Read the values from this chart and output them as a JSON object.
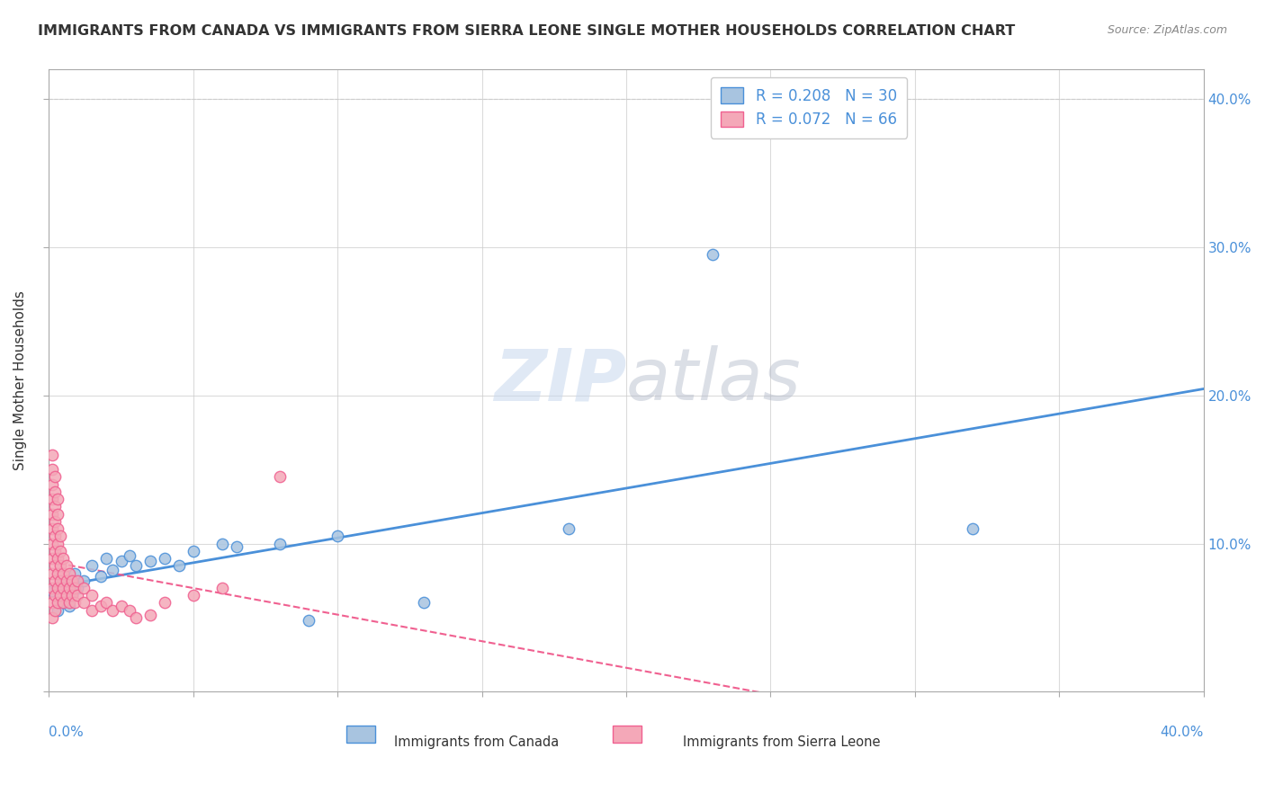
{
  "title": "IMMIGRANTS FROM CANADA VS IMMIGRANTS FROM SIERRA LEONE SINGLE MOTHER HOUSEHOLDS CORRELATION CHART",
  "source": "Source: ZipAtlas.com",
  "ylabel": "Single Mother Households",
  "legend_canada": "R = 0.208   N = 30",
  "legend_sierra": "R = 0.072   N = 66",
  "watermark_zip": "ZIP",
  "watermark_atlas": "atlas",
  "canada_color": "#a8c4e0",
  "sierra_color": "#f4a8b8",
  "canada_line_color": "#4a90d9",
  "sierra_line_color": "#f06090",
  "canada_scatter": [
    [
      0.001,
      0.068
    ],
    [
      0.003,
      0.055
    ],
    [
      0.004,
      0.072
    ],
    [
      0.005,
      0.06
    ],
    [
      0.006,
      0.075
    ],
    [
      0.007,
      0.058
    ],
    [
      0.008,
      0.065
    ],
    [
      0.009,
      0.08
    ],
    [
      0.01,
      0.07
    ],
    [
      0.012,
      0.075
    ],
    [
      0.015,
      0.085
    ],
    [
      0.018,
      0.078
    ],
    [
      0.02,
      0.09
    ],
    [
      0.022,
      0.082
    ],
    [
      0.025,
      0.088
    ],
    [
      0.028,
      0.092
    ],
    [
      0.03,
      0.085
    ],
    [
      0.035,
      0.088
    ],
    [
      0.04,
      0.09
    ],
    [
      0.045,
      0.085
    ],
    [
      0.05,
      0.095
    ],
    [
      0.06,
      0.1
    ],
    [
      0.065,
      0.098
    ],
    [
      0.08,
      0.1
    ],
    [
      0.09,
      0.048
    ],
    [
      0.1,
      0.105
    ],
    [
      0.13,
      0.06
    ],
    [
      0.18,
      0.11
    ],
    [
      0.23,
      0.295
    ],
    [
      0.32,
      0.11
    ]
  ],
  "sierra_scatter": [
    [
      0.001,
      0.05
    ],
    [
      0.001,
      0.06
    ],
    [
      0.001,
      0.07
    ],
    [
      0.001,
      0.08
    ],
    [
      0.001,
      0.09
    ],
    [
      0.001,
      0.1
    ],
    [
      0.001,
      0.11
    ],
    [
      0.001,
      0.12
    ],
    [
      0.001,
      0.13
    ],
    [
      0.001,
      0.14
    ],
    [
      0.001,
      0.15
    ],
    [
      0.001,
      0.16
    ],
    [
      0.002,
      0.055
    ],
    [
      0.002,
      0.065
    ],
    [
      0.002,
      0.075
    ],
    [
      0.002,
      0.085
    ],
    [
      0.002,
      0.095
    ],
    [
      0.002,
      0.105
    ],
    [
      0.002,
      0.115
    ],
    [
      0.002,
      0.125
    ],
    [
      0.002,
      0.135
    ],
    [
      0.002,
      0.145
    ],
    [
      0.003,
      0.06
    ],
    [
      0.003,
      0.07
    ],
    [
      0.003,
      0.08
    ],
    [
      0.003,
      0.09
    ],
    [
      0.003,
      0.1
    ],
    [
      0.003,
      0.11
    ],
    [
      0.003,
      0.12
    ],
    [
      0.003,
      0.13
    ],
    [
      0.004,
      0.065
    ],
    [
      0.004,
      0.075
    ],
    [
      0.004,
      0.085
    ],
    [
      0.004,
      0.095
    ],
    [
      0.004,
      0.105
    ],
    [
      0.005,
      0.06
    ],
    [
      0.005,
      0.07
    ],
    [
      0.005,
      0.08
    ],
    [
      0.005,
      0.09
    ],
    [
      0.006,
      0.065
    ],
    [
      0.006,
      0.075
    ],
    [
      0.006,
      0.085
    ],
    [
      0.007,
      0.06
    ],
    [
      0.007,
      0.07
    ],
    [
      0.007,
      0.08
    ],
    [
      0.008,
      0.065
    ],
    [
      0.008,
      0.075
    ],
    [
      0.009,
      0.06
    ],
    [
      0.009,
      0.07
    ],
    [
      0.01,
      0.065
    ],
    [
      0.01,
      0.075
    ],
    [
      0.012,
      0.06
    ],
    [
      0.012,
      0.07
    ],
    [
      0.015,
      0.055
    ],
    [
      0.015,
      0.065
    ],
    [
      0.018,
      0.058
    ],
    [
      0.02,
      0.06
    ],
    [
      0.022,
      0.055
    ],
    [
      0.025,
      0.058
    ],
    [
      0.028,
      0.055
    ],
    [
      0.03,
      0.05
    ],
    [
      0.035,
      0.052
    ],
    [
      0.04,
      0.06
    ],
    [
      0.05,
      0.065
    ],
    [
      0.06,
      0.07
    ],
    [
      0.08,
      0.145
    ]
  ],
  "xlim": [
    0.0,
    0.4
  ],
  "ylim": [
    0.0,
    0.42
  ],
  "background_color": "#ffffff",
  "grid_color": "#cccccc"
}
